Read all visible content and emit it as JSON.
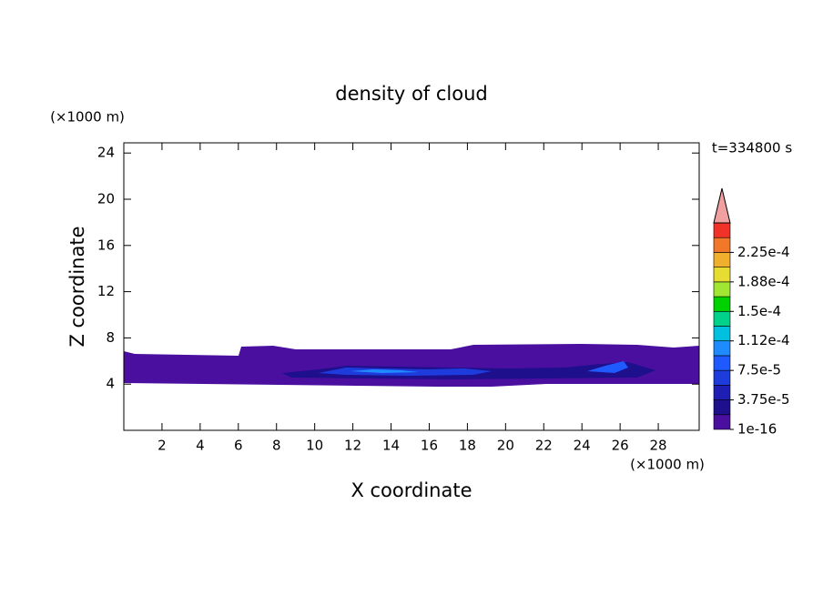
{
  "chart_data": {
    "type": "contour",
    "title": "density of cloud",
    "x_label": "X coordinate",
    "y_label": "Z coordinate",
    "x_unit": "(×1000 m)",
    "y_unit": "(×1000 m)",
    "time_label": "t=334800 s",
    "xlim": [
      0,
      30
    ],
    "ylim": [
      0,
      25
    ],
    "xticks": [
      2,
      4,
      6,
      8,
      10,
      12,
      14,
      16,
      18,
      20,
      22,
      24,
      26,
      28
    ],
    "yticks": [
      4,
      8,
      12,
      16,
      20,
      24
    ],
    "colorbar": {
      "clim": [
        1e-16,
        0.0002625
      ],
      "colors": [
        "#4b0fa0",
        "#1e0f8c",
        "#1e1eb4",
        "#1e3cdc",
        "#1e5aff",
        "#1e8cff",
        "#00c0e0",
        "#00d28c",
        "#00d200",
        "#a0e632",
        "#e6dc32",
        "#f0af2d",
        "#f07828",
        "#f03228"
      ],
      "extend_color": "#f0a0a0",
      "ticks": [
        {
          "value": 1e-16,
          "label": "1e-16"
        },
        {
          "value": 3.75e-05,
          "label": "3.75e-5"
        },
        {
          "value": 7.5e-05,
          "label": "7.5e-5"
        },
        {
          "value": 0.0001125,
          "label": "1.12e-4"
        },
        {
          "value": 0.00015,
          "label": "1.5e-4"
        },
        {
          "value": 0.0001875,
          "label": "1.88e-4"
        },
        {
          "value": 0.000225,
          "label": "2.25e-4"
        }
      ]
    }
  }
}
